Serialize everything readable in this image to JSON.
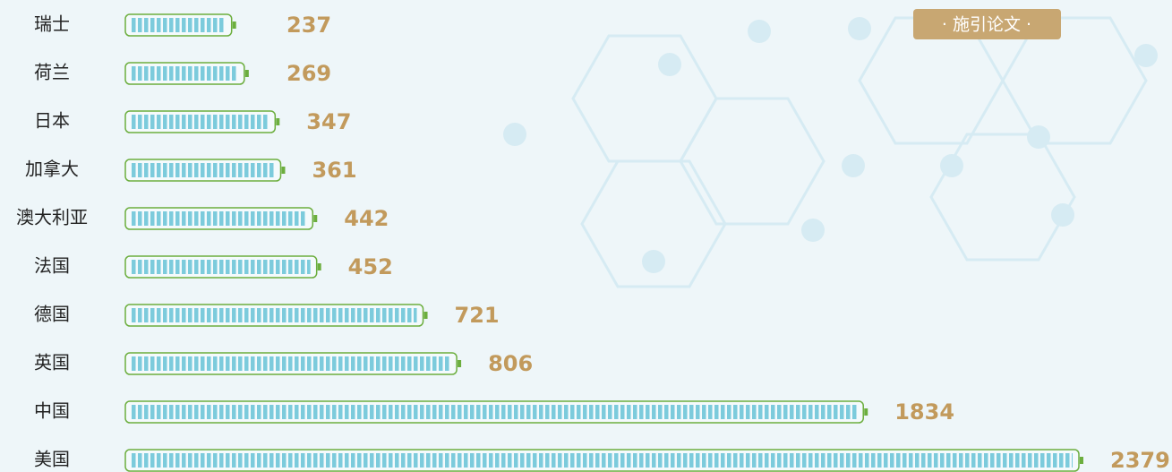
{
  "chart_data": {
    "type": "bar",
    "orientation": "horizontal",
    "categories": [
      "瑞士",
      "荷兰",
      "日本",
      "加拿大",
      "澳大利亚",
      "法国",
      "德国",
      "英国",
      "中国",
      "美国"
    ],
    "series": [
      {
        "name": "· 施引论文 ·",
        "color": "#7ccbdc",
        "values": [
          237,
          269,
          347,
          361,
          442,
          452,
          721,
          806,
          1834,
          2379
        ]
      }
    ],
    "outline_color": "#6cae3e",
    "label_color": "#c29a5c",
    "legend_color": "#c8a772"
  }
}
